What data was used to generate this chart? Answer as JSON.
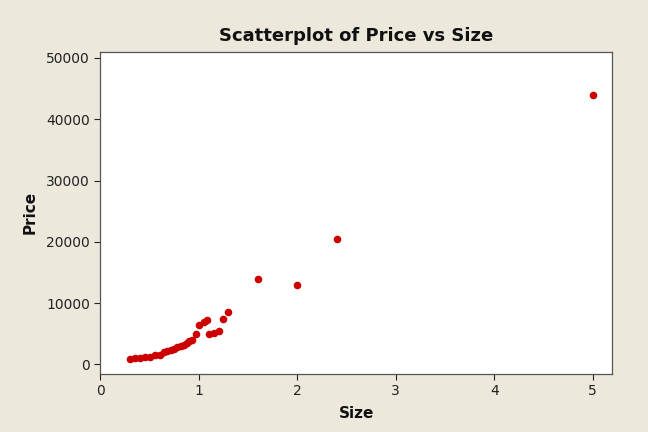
{
  "title": "Scatterplot of Price vs Size",
  "xlabel": "Size",
  "ylabel": "Price",
  "xlim": [
    0.2,
    5.2
  ],
  "ylim": [
    -1500,
    51000
  ],
  "xticks": [
    0,
    1,
    2,
    3,
    4,
    5
  ],
  "yticks": [
    0,
    10000,
    20000,
    30000,
    40000,
    50000
  ],
  "background_outer": "#ede8dc",
  "background_inner": "#ffffff",
  "dot_color": "#cc0000",
  "dot_size": 30,
  "title_fontsize": 13,
  "label_fontsize": 11,
  "tick_fontsize": 10,
  "x": [
    0.3,
    0.35,
    0.4,
    0.45,
    0.5,
    0.55,
    0.6,
    0.65,
    0.68,
    0.72,
    0.75,
    0.78,
    0.82,
    0.85,
    0.88,
    0.9,
    0.93,
    0.97,
    1.0,
    1.05,
    1.08,
    1.1,
    1.15,
    1.2,
    1.25,
    1.3,
    1.6,
    2.0,
    2.4,
    5.0
  ],
  "y": [
    900,
    1100,
    1000,
    1300,
    1200,
    1500,
    1600,
    2000,
    2200,
    2300,
    2500,
    2800,
    3000,
    3200,
    3500,
    3800,
    4000,
    5000,
    6500,
    7000,
    7200,
    5000,
    5200,
    5500,
    7500,
    8500,
    14000,
    13000,
    20500,
    44000
  ]
}
